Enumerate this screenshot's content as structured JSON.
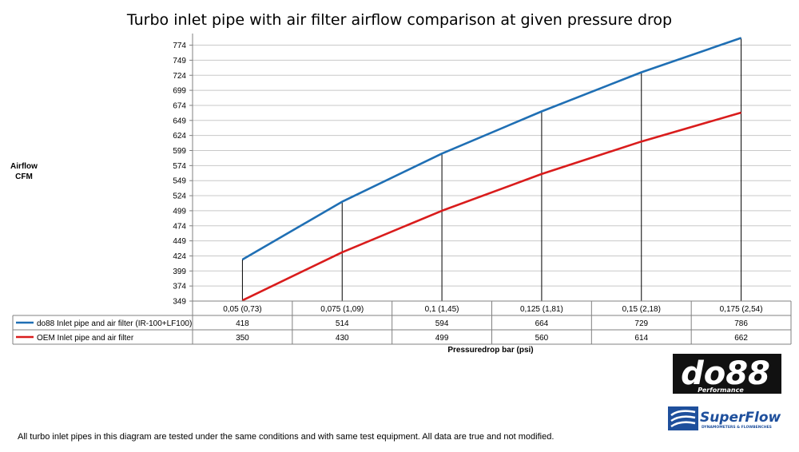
{
  "chart_data": {
    "type": "line",
    "title": "Turbo inlet pipe with air filter airflow comparison at given pressure drop",
    "ylabel_line1": "Airflow",
    "ylabel_line2": "CFM",
    "xlabel": "Pressuredrop bar (psi)",
    "categories": [
      "0,05 (0,73)",
      "0,075 (1,09)",
      "0,1 (1,45)",
      "0,125 (1,81)",
      "0,15 (2,18)",
      "0,175 (2,54)"
    ],
    "yticks": [
      349,
      374,
      399,
      424,
      449,
      474,
      499,
      524,
      549,
      574,
      599,
      624,
      649,
      674,
      699,
      724,
      749,
      774
    ],
    "ylim": [
      349,
      786
    ],
    "grid": true,
    "legend": "data-table",
    "series": [
      {
        "name": "do88 Inlet pipe and air filter (IR-100+LF100)",
        "color": "#1f6fb4",
        "values": [
          418,
          514,
          594,
          664,
          729,
          786
        ]
      },
      {
        "name": "OEM Inlet pipe and air filter",
        "color": "#d91c1c",
        "values": [
          350,
          430,
          499,
          560,
          614,
          662
        ]
      }
    ]
  },
  "logos": {
    "do88": "do88",
    "do88_sub": "Performance",
    "superflow": "SuperFlow",
    "superflow_sub": "DYNAMOMETERS & FLOWBENCHES"
  },
  "footnote": "All turbo inlet pipes in this diagram are tested under the same conditions and with same test equipment. All data are true and not modified."
}
